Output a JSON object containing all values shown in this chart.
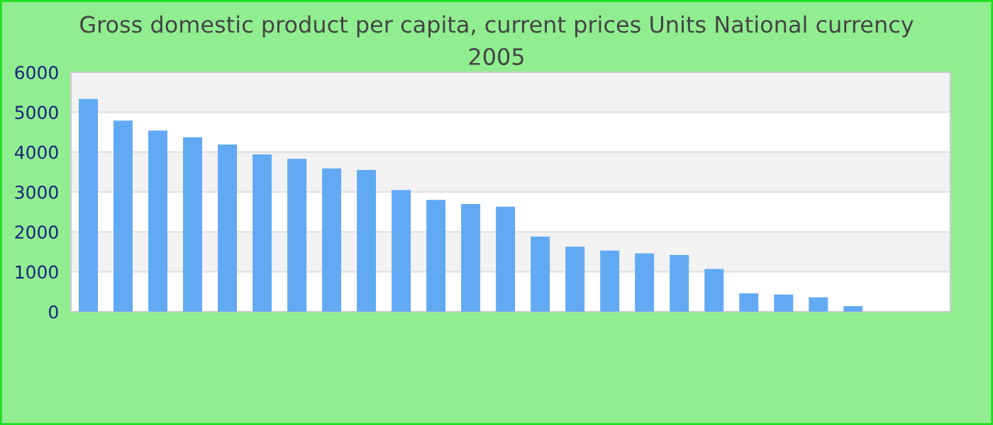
{
  "chart_data": {
    "type": "bar",
    "title": "Gross domestic product per capita, current prices Units National currency\n2005",
    "categories": [
      null,
      null,
      null,
      null,
      null,
      null,
      null,
      null,
      null,
      null,
      null,
      null,
      null,
      null,
      null,
      null,
      null,
      null,
      null,
      null,
      null,
      null,
      null,
      null,
      null
    ],
    "values": [
      5330,
      4790,
      4540,
      4370,
      4190,
      3940,
      3830,
      3590,
      3550,
      3050,
      2800,
      2700,
      2630,
      1880,
      1630,
      1530,
      1460,
      1420,
      1070,
      460,
      430,
      360,
      140,
      null,
      null
    ],
    "color": "#62a9f4",
    "ylim": [
      0,
      6000
    ],
    "yticks": [
      0,
      1000,
      2000,
      3000,
      4000,
      5000,
      6000
    ],
    "grid": "y",
    "legend": false
  }
}
